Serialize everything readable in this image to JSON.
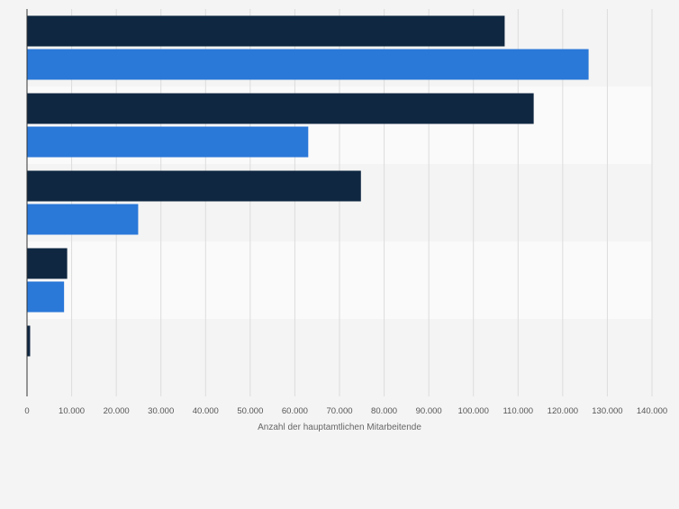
{
  "chart_data": {
    "type": "bar",
    "orientation": "horizontal",
    "categories": [
      "",
      "",
      "",
      "",
      ""
    ],
    "series": [
      {
        "color": "#0f2741",
        "values": [
          107000,
          113500,
          74800,
          9000,
          700
        ]
      },
      {
        "color": "#2a78d8",
        "values": [
          125800,
          63000,
          24900,
          8300,
          0
        ]
      }
    ],
    "xlabel": "Anzahl der hauptamtlichen Mitarbeitende",
    "ylabel": "",
    "xlim": [
      0,
      140000
    ],
    "x_ticks": [
      0,
      10000,
      20000,
      30000,
      40000,
      50000,
      60000,
      70000,
      80000,
      90000,
      100000,
      110000,
      120000,
      130000,
      140000
    ],
    "x_tick_labels": [
      "0",
      "10.000",
      "20.000",
      "30.000",
      "40.000",
      "50.000",
      "60.000",
      "70.000",
      "80.000",
      "90.000",
      "100.000",
      "110.000",
      "120.000",
      "130.000",
      "140.000"
    ],
    "grid": true,
    "legend": "none"
  },
  "colors": {
    "background": "#f4f4f4",
    "band_light": "#fafafa",
    "band_dark": "#f4f4f4",
    "gridline": "#dcdcdc",
    "axis": "#333333",
    "tick_text": "#555555"
  }
}
